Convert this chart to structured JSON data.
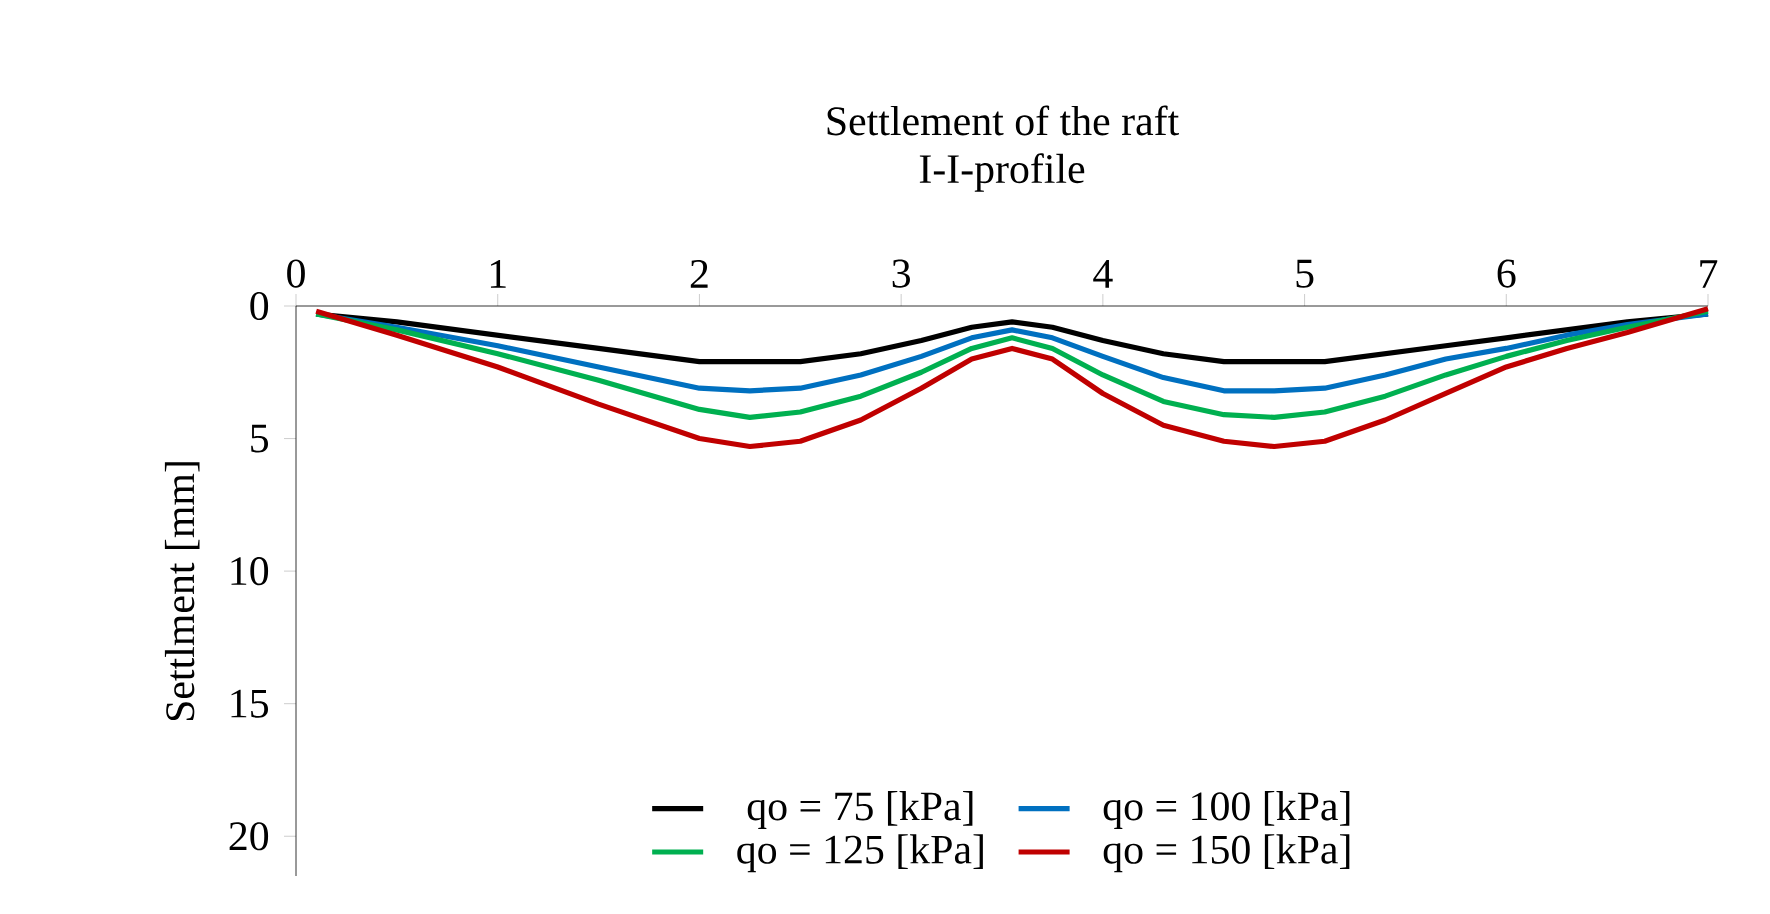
{
  "chart_data": {
    "type": "line",
    "title": "Settlement of the raft",
    "subtitle": "I-I-profile",
    "ylabel": "Settlment [mm]",
    "x": [
      0.1,
      0.5,
      1,
      1.5,
      2,
      2.25,
      2.5,
      2.8,
      3.1,
      3.35,
      3.55,
      3.75,
      4,
      4.3,
      4.6,
      4.85,
      5.1,
      5.4,
      5.7,
      6,
      6.3,
      6.6,
      7
    ],
    "series": [
      {
        "name": "qo = 75 [kPa]",
        "color": "#000000",
        "values": [
          0.3,
          0.6,
          1.1,
          1.6,
          2.1,
          2.1,
          2.1,
          1.8,
          1.3,
          0.8,
          0.6,
          0.8,
          1.3,
          1.8,
          2.1,
          2.1,
          2.1,
          1.8,
          1.5,
          1.2,
          0.9,
          0.6,
          0.3
        ]
      },
      {
        "name": "qo = 100 [kPa]",
        "color": "#0070c0",
        "values": [
          0.3,
          0.8,
          1.5,
          2.3,
          3.1,
          3.2,
          3.1,
          2.6,
          1.9,
          1.2,
          0.9,
          1.2,
          1.9,
          2.7,
          3.2,
          3.2,
          3.1,
          2.6,
          2.0,
          1.6,
          1.1,
          0.7,
          0.3
        ]
      },
      {
        "name": "qo = 125 [kPa]",
        "color": "#00b050",
        "values": [
          0.3,
          0.9,
          1.8,
          2.8,
          3.9,
          4.2,
          4.0,
          3.4,
          2.5,
          1.6,
          1.2,
          1.6,
          2.6,
          3.6,
          4.1,
          4.2,
          4.0,
          3.4,
          2.6,
          1.9,
          1.3,
          0.8,
          0.2
        ]
      },
      {
        "name": "qo = 150 [kPa]",
        "color": "#c00000",
        "values": [
          0.2,
          1.1,
          2.3,
          3.7,
          5.0,
          5.3,
          5.1,
          4.3,
          3.1,
          2.0,
          1.6,
          2.0,
          3.3,
          4.5,
          5.1,
          5.3,
          5.1,
          4.3,
          3.3,
          2.3,
          1.6,
          1.0,
          0.1
        ]
      }
    ],
    "xlim": [
      0,
      7
    ],
    "xticks": [
      0,
      1,
      2,
      3,
      4,
      5,
      6,
      7
    ],
    "ylim": [
      21.5,
      0
    ],
    "yticks": [
      0,
      5,
      10,
      15,
      20
    ],
    "grid": false,
    "legend": "bottom",
    "marker": "none",
    "line_style": "solid"
  }
}
